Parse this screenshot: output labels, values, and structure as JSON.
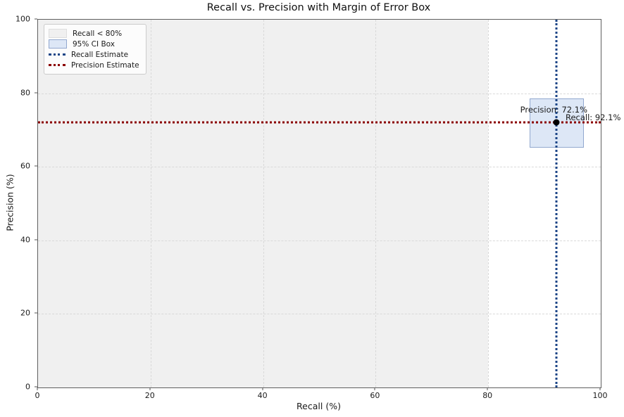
{
  "chart_data": {
    "type": "scatter",
    "title": "Recall vs. Precision with Margin of Error Box",
    "xlabel": "Recall (%)",
    "ylabel": "Precision (%)",
    "xlim": [
      0,
      100
    ],
    "ylim": [
      0,
      100
    ],
    "x_ticks": [
      0,
      20,
      40,
      60,
      80,
      100
    ],
    "y_ticks": [
      0,
      20,
      40,
      60,
      80,
      100
    ],
    "grid": "dashed, at every 20 units",
    "point": {
      "recall": 92.1,
      "precision": 72.1
    },
    "ci_box": {
      "recall_min": 87.4,
      "recall_max": 96.8,
      "precision_min": 65.6,
      "precision_max": 78.6
    },
    "shaded_region": {
      "recall_min": 0,
      "recall_max": 80
    },
    "annotations": {
      "precision": "Precision: 72.1%",
      "recall": "Recall: 92.1%"
    },
    "legend": {
      "position": "upper left",
      "entries": [
        {
          "label": "Recall < 80%",
          "type": "patch-gray"
        },
        {
          "label": "95% CI Box",
          "type": "patch-blue"
        },
        {
          "label": "Recall Estimate",
          "type": "dotted-line-blue"
        },
        {
          "label": "Precision Estimate",
          "type": "dotted-line-darkred"
        }
      ]
    },
    "colors": {
      "shaded_region": "#f0f0f0",
      "ci_box_fill": "#dde7f6",
      "ci_box_border": "#92a8cf",
      "recall_line": "#1c4587",
      "precision_line": "#8b0000",
      "point": "#000000",
      "gridline": "#d9d9d9"
    }
  }
}
